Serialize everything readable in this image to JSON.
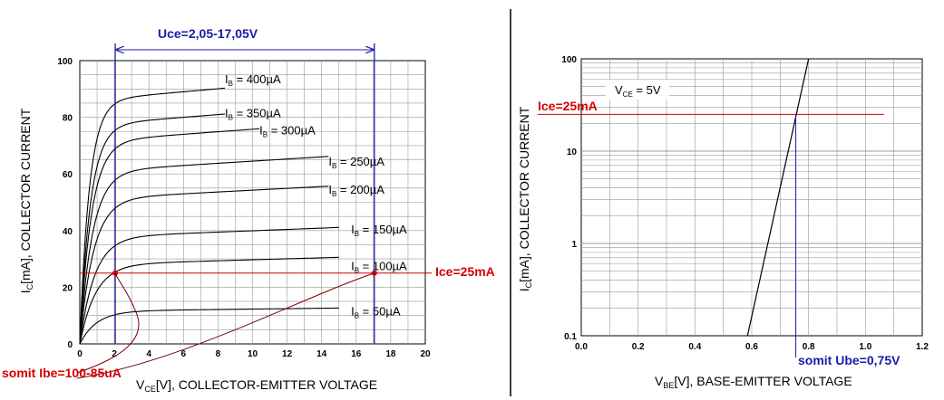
{
  "colors": {
    "red": "#d40000",
    "blue": "#1a1aa8",
    "grid": "#9a9a9a",
    "curve": "#000000"
  },
  "chart_data": [
    {
      "type": "line",
      "xlabel_main": "V",
      "xlabel_sub": "CE",
      "xlabel_rest": "[V], COLLECTOR-EMITTER VOLTAGE",
      "ylabel_main": "I",
      "ylabel_sub": "C",
      "ylabel_rest": "[mA], COLLECTOR CURRENT",
      "xlim": [
        0,
        20
      ],
      "ylim": [
        0,
        100
      ],
      "xticks": [
        "0",
        "2",
        "4",
        "6",
        "8",
        "10",
        "12",
        "14",
        "16",
        "18",
        "20"
      ],
      "yticks": [
        "0",
        "20",
        "40",
        "60",
        "80",
        "100"
      ],
      "grid": true,
      "series": [
        {
          "name": "IB = 400µA",
          "label_main": "I",
          "label_sub": "B",
          "label_rest": " = 400µA",
          "ysat": 89,
          "xend": 8.4
        },
        {
          "name": "IB = 350µA",
          "label_main": "I",
          "label_sub": "B",
          "label_rest": " = 350µA",
          "ysat": 80,
          "xend": 8.4
        },
        {
          "name": "IB = 300µA",
          "label_main": "I",
          "label_sub": "B",
          "label_rest": " = 300µA",
          "ysat": 74,
          "xend": 10.4
        },
        {
          "name": "IB = 250µA",
          "label_main": "I",
          "label_sub": "B",
          "label_rest": " = 250µA",
          "ysat": 63,
          "xend": 14.4
        },
        {
          "name": "IB = 200µA",
          "label_main": "I",
          "label_sub": "B",
          "label_rest": " = 200µA",
          "ysat": 53,
          "xend": 14.4
        },
        {
          "name": "IB = 150µA",
          "label_main": "I",
          "label_sub": "B",
          "label_rest": " = 150µA",
          "ysat": 39,
          "xend": 15
        },
        {
          "name": "IB = 100µA",
          "label_main": "I",
          "label_sub": "B",
          "label_rest": " = 100µA",
          "ysat": 29,
          "xend": 15
        },
        {
          "name": "IB = 50µA",
          "label_main": "I",
          "label_sub": "B",
          "label_rest": " = 50µA",
          "ysat": 12,
          "xend": 15
        }
      ],
      "annotations": {
        "uce_range": "Uce=2,05-17,05V",
        "uce_min": 2.05,
        "uce_max": 17.05,
        "ice_label": "Ice=25mA",
        "ice_value": 25,
        "ibe_label": "somit Ibe=100-85uA"
      }
    },
    {
      "type": "line",
      "xlabel_main": "V",
      "xlabel_sub": "BE",
      "xlabel_rest": "[V], BASE-EMITTER VOLTAGE",
      "ylabel_main": "I",
      "ylabel_sub": "C",
      "ylabel_rest": "[mA], COLLECTOR CURRENT",
      "xlim": [
        0,
        1.2
      ],
      "ylim": [
        0.1,
        100
      ],
      "yscale": "log",
      "xticks": [
        "0.0",
        "0.2",
        "0.4",
        "0.6",
        "0.8",
        "1.0",
        "1.2"
      ],
      "yticks": [
        "0.1",
        "1",
        "10",
        "100"
      ],
      "grid": true,
      "legend_main": "V",
      "legend_sub": "CE",
      "legend_rest": " = 5V",
      "series": [
        {
          "name": "transfer",
          "x": [
            0.585,
            0.8
          ],
          "y": [
            0.1,
            100
          ]
        }
      ],
      "annotations": {
        "ice_label": "Ice=25mA",
        "ice_value": 25,
        "ube_label": "somit Ube=0,75V",
        "ube_value": 0.755
      }
    }
  ]
}
